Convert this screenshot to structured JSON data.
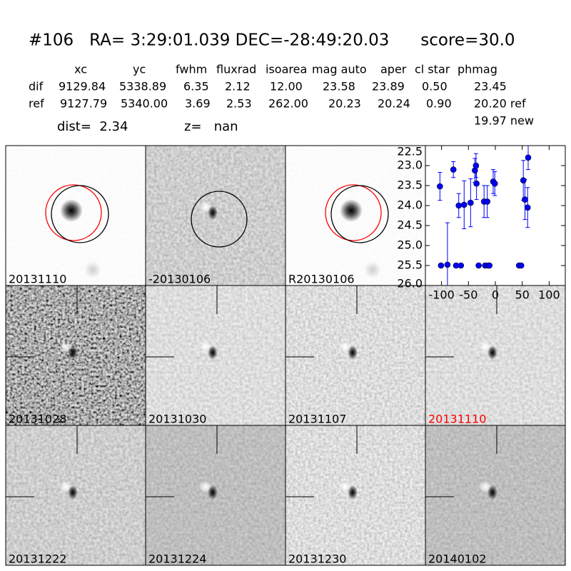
{
  "header": {
    "title": "#106   RA= 3:29:01.039 DEC=-28:49:20.03      score=30.0",
    "dist": "dist=  2.34",
    "z": "z=   nan"
  },
  "table": {
    "columns": [
      "xc",
      "yc",
      "fwhm",
      "fluxrad",
      "isoarea",
      "mag auto",
      "aper",
      "cl star",
      "phmag"
    ],
    "rows": [
      [
        "dif",
        "9129.84",
        "5338.89",
        "6.35",
        "2.12",
        "12.00",
        "23.58",
        "23.89",
        "0.50",
        "23.45"
      ],
      [
        "ref",
        "9127.79",
        "5340.00",
        "3.69",
        "2.53",
        "262.00",
        "20.23",
        "20.24",
        "0.90",
        "20.20 ref"
      ]
    ],
    "extra": "19.97 new"
  },
  "stamps": [
    {
      "label": "20131110",
      "color": "#000000"
    },
    {
      "label": "-20130106",
      "color": "#000000"
    },
    {
      "label": "R20130106",
      "color": "#000000"
    },
    {
      "label": "20131028",
      "color": "#000000"
    },
    {
      "label": "20131030",
      "color": "#000000"
    },
    {
      "label": "20131107",
      "color": "#000000"
    },
    {
      "label": "20131110",
      "color": "#ff0000"
    },
    {
      "label": "20131222",
      "color": "#000000"
    },
    {
      "label": "20131224",
      "color": "#000000"
    },
    {
      "label": "20131230",
      "color": "#000000"
    },
    {
      "label": "20140102",
      "color": "#000000"
    }
  ],
  "chart_data": {
    "type": "scatter",
    "color": "#0000ff",
    "x": [
      -103,
      -78,
      -68,
      -58,
      -46,
      -38,
      -36,
      -35,
      -21,
      -15,
      -4,
      -1,
      52,
      55,
      60,
      61,
      -101,
      -89,
      -73,
      -64,
      -31,
      -19,
      -13,
      -11,
      44,
      48
    ],
    "values": [
      23.52,
      23.1,
      24.0,
      23.98,
      23.93,
      23.12,
      23.0,
      23.45,
      23.9,
      23.9,
      23.4,
      23.45,
      23.37,
      23.85,
      24.05,
      22.8,
      25.5,
      25.48,
      25.5,
      25.5,
      25.5,
      25.5,
      25.5,
      25.5,
      25.5,
      25.5
    ],
    "errors": [
      0.35,
      0.2,
      0.3,
      0.6,
      0.6,
      0.3,
      0.3,
      0.4,
      0.4,
      0.4,
      0.3,
      0.3,
      0.5,
      0.5,
      0.5,
      0.3,
      0.02,
      1.05,
      0.02,
      0.02,
      0.02,
      0.02,
      0.02,
      0.02,
      0.02,
      0.02
    ],
    "xlim": [
      -130,
      130
    ],
    "xticks": [
      -100,
      -50,
      0,
      50,
      100
    ],
    "ylim": [
      26.0,
      22.5
    ],
    "yticks": [
      22.5,
      {
        "value": 23,
        "label": "23.0"
      },
      23.5,
      {
        "value": 24,
        "label": "24.0"
      },
      24.5,
      {
        "value": 25,
        "label": "25.0"
      },
      25.5,
      {
        "value": 26,
        "label": "26.0"
      }
    ]
  }
}
